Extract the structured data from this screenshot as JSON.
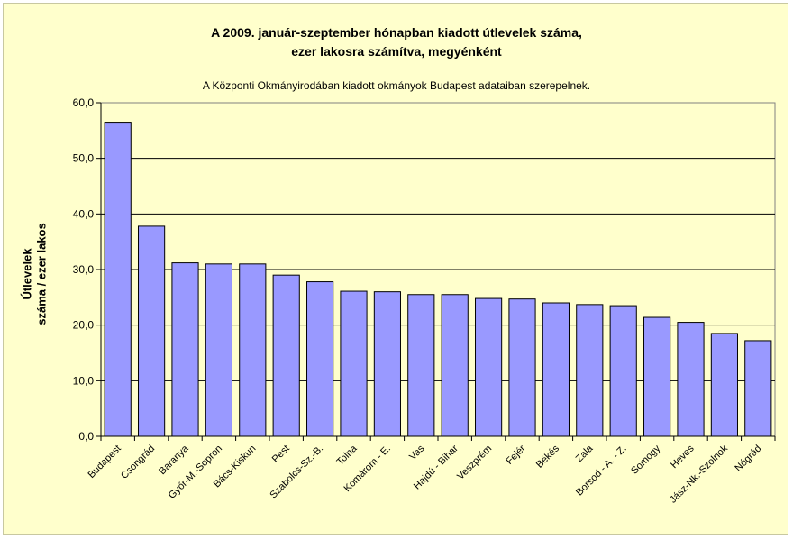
{
  "chart_data": {
    "type": "bar",
    "title_lines": [
      "A 2009. január-szeptember hónapban kiadott útlevelek száma,",
      "ezer lakosra számítva, megyénként"
    ],
    "subtitle": "A Központi Okmányirodában kiadott okmányok Budapest adataiban szerepelnek.",
    "ylabel_lines": [
      "Útlevelek",
      "száma / ezer lakos"
    ],
    "xlabel": "",
    "ylim": [
      0,
      60
    ],
    "yticks": [
      "0,0",
      "10,0",
      "20,0",
      "30,0",
      "40,0",
      "50,0",
      "60,0"
    ],
    "grid": true,
    "bar_color": "#9999ff",
    "plot_background": "#ffffcc",
    "categories": [
      "Budapest",
      "Csongrád",
      "Baranya",
      "Győr-M.-Sopron",
      "Bács-Kiskun",
      "Pest",
      "Szabolcs-Sz.-B.",
      "Tolna",
      "Komárom - E.",
      "Vas",
      "Hajdú - Bihar",
      "Veszprém",
      "Fejér",
      "Békés",
      "Zala",
      "Borsod - A. - Z.",
      "Somogy",
      "Heves",
      "Jász-Nk.-Szolnok",
      "Nógrád"
    ],
    "values": [
      56.5,
      37.8,
      31.2,
      31.0,
      31.0,
      29.0,
      27.8,
      26.1,
      26.0,
      25.5,
      25.5,
      24.8,
      24.7,
      24.0,
      23.7,
      23.5,
      21.4,
      20.5,
      18.5,
      17.2
    ]
  }
}
